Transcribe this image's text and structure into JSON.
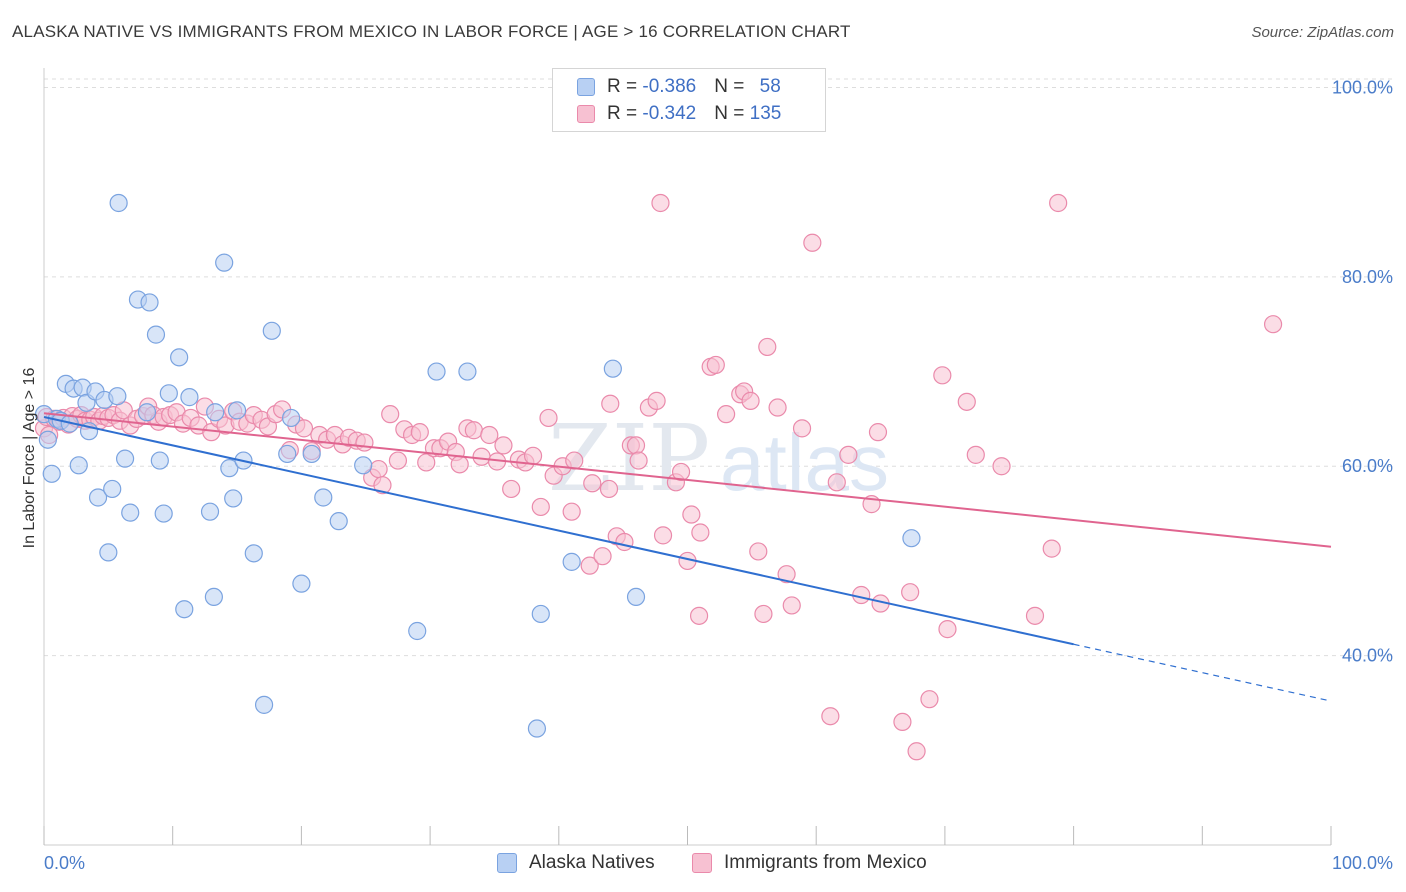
{
  "header": {
    "title": "ALASKA NATIVE VS IMMIGRANTS FROM MEXICO IN LABOR FORCE | AGE > 16 CORRELATION CHART",
    "source": "Source: ZipAtlas.com"
  },
  "watermark": {
    "zip": "ZIP",
    "atlas": "atlas"
  },
  "legend": {
    "r_label": "R = ",
    "n_label": "N = ",
    "rows": [
      {
        "r": "-0.386",
        "n": "58"
      },
      {
        "r": "-0.342",
        "n": "135"
      }
    ]
  },
  "bottom_legend": [
    "Alaska Natives",
    "Immigrants from Mexico"
  ],
  "colors": {
    "series1_fill": "#b8d0f3",
    "series1_stroke": "#7aa3e0",
    "series1_line": "#2f6fd0",
    "series2_fill": "#f7c1d2",
    "series2_stroke": "#ea8aab",
    "series2_line": "#e0648f",
    "tick": "#4a7cc9",
    "grid": "#dddddd"
  },
  "chart_data": {
    "type": "scatter",
    "title": "ALASKA NATIVE VS IMMIGRANTS FROM MEXICO IN LABOR FORCE | AGE > 16 CORRELATION CHART",
    "xlabel": "",
    "ylabel": "In Labor Force | Age > 16",
    "xlim": [
      0,
      100
    ],
    "ylim": [
      20,
      101
    ],
    "x_tick_labels": [
      "0.0%",
      "100.0%"
    ],
    "y_ticks": [
      40,
      60,
      80,
      100
    ],
    "y_tick_labels": [
      "40.0%",
      "60.0%",
      "80.0%",
      "100.0%"
    ],
    "grid": true,
    "legend_position": "top-center",
    "series": [
      {
        "name": "Alaska Natives",
        "r": -0.386,
        "n": 58,
        "trend": {
          "x0": 0,
          "y0": 65.2,
          "x1": 80,
          "y1": 41.2,
          "dashed_to_x": 100,
          "dashed_to_y": 35.2
        },
        "points": [
          [
            0.0,
            65.5
          ],
          [
            0.3,
            62.8
          ],
          [
            0.6,
            59.2
          ],
          [
            1.0,
            65.0
          ],
          [
            1.3,
            64.8
          ],
          [
            1.7,
            68.7
          ],
          [
            2.0,
            64.5
          ],
          [
            2.3,
            68.2
          ],
          [
            2.7,
            60.1
          ],
          [
            3.0,
            68.3
          ],
          [
            3.3,
            66.7
          ],
          [
            3.5,
            63.7
          ],
          [
            4.0,
            67.9
          ],
          [
            4.2,
            56.7
          ],
          [
            4.7,
            67.0
          ],
          [
            5.0,
            50.9
          ],
          [
            5.3,
            57.6
          ],
          [
            5.7,
            67.4
          ],
          [
            5.8,
            87.8
          ],
          [
            6.3,
            60.8
          ],
          [
            6.7,
            55.1
          ],
          [
            7.3,
            77.6
          ],
          [
            8.0,
            65.7
          ],
          [
            8.2,
            77.3
          ],
          [
            8.7,
            73.9
          ],
          [
            9.0,
            60.6
          ],
          [
            9.3,
            55.0
          ],
          [
            9.7,
            67.7
          ],
          [
            10.5,
            71.5
          ],
          [
            10.9,
            44.9
          ],
          [
            11.3,
            67.3
          ],
          [
            12.9,
            55.2
          ],
          [
            13.2,
            46.2
          ],
          [
            13.3,
            65.7
          ],
          [
            14.0,
            81.5
          ],
          [
            14.4,
            59.8
          ],
          [
            14.7,
            56.6
          ],
          [
            15.0,
            65.9
          ],
          [
            15.5,
            60.6
          ],
          [
            16.3,
            50.8
          ],
          [
            17.1,
            34.8
          ],
          [
            17.7,
            74.3
          ],
          [
            18.9,
            61.3
          ],
          [
            19.2,
            65.1
          ],
          [
            20.0,
            47.6
          ],
          [
            20.8,
            61.3
          ],
          [
            21.7,
            56.7
          ],
          [
            22.9,
            54.2
          ],
          [
            24.8,
            60.1
          ],
          [
            29.0,
            42.6
          ],
          [
            30.5,
            70.0
          ],
          [
            32.9,
            70.0
          ],
          [
            38.3,
            32.3
          ],
          [
            38.6,
            44.4
          ],
          [
            41.0,
            49.9
          ],
          [
            44.2,
            70.3
          ],
          [
            46.0,
            46.2
          ],
          [
            67.4,
            52.4
          ]
        ]
      },
      {
        "name": "Immigrants from Mexico",
        "r": -0.342,
        "n": 135,
        "trend": {
          "x0": 0,
          "y0": 65.6,
          "x1": 100,
          "y1": 51.5
        },
        "points": [
          [
            0.0,
            64.0
          ],
          [
            0.2,
            65.2
          ],
          [
            0.4,
            63.3
          ],
          [
            0.8,
            65.0
          ],
          [
            1.2,
            64.7
          ],
          [
            1.5,
            65.1
          ],
          [
            1.9,
            64.4
          ],
          [
            2.2,
            65.3
          ],
          [
            2.6,
            65.0
          ],
          [
            2.9,
            65.4
          ],
          [
            3.2,
            64.8
          ],
          [
            3.6,
            64.9
          ],
          [
            3.9,
            65.2
          ],
          [
            4.3,
            64.8
          ],
          [
            4.6,
            65.3
          ],
          [
            5.0,
            65.1
          ],
          [
            5.4,
            65.4
          ],
          [
            5.9,
            64.8
          ],
          [
            6.2,
            65.9
          ],
          [
            6.7,
            64.3
          ],
          [
            7.2,
            65.0
          ],
          [
            7.7,
            65.3
          ],
          [
            8.1,
            66.3
          ],
          [
            8.5,
            65.4
          ],
          [
            8.9,
            64.7
          ],
          [
            9.3,
            65.2
          ],
          [
            9.8,
            65.4
          ],
          [
            10.3,
            65.7
          ],
          [
            10.8,
            64.5
          ],
          [
            11.4,
            65.1
          ],
          [
            12.0,
            64.3
          ],
          [
            12.5,
            66.3
          ],
          [
            13.0,
            63.6
          ],
          [
            13.6,
            65.0
          ],
          [
            14.1,
            64.3
          ],
          [
            14.7,
            65.8
          ],
          [
            15.2,
            64.7
          ],
          [
            15.8,
            64.5
          ],
          [
            16.3,
            65.4
          ],
          [
            16.9,
            64.9
          ],
          [
            17.4,
            64.2
          ],
          [
            18.0,
            65.5
          ],
          [
            18.5,
            66.0
          ],
          [
            19.1,
            61.7
          ],
          [
            19.6,
            64.4
          ],
          [
            20.2,
            64.0
          ],
          [
            20.8,
            61.6
          ],
          [
            21.4,
            63.3
          ],
          [
            22.0,
            62.8
          ],
          [
            22.6,
            63.3
          ],
          [
            23.2,
            62.3
          ],
          [
            23.7,
            63.0
          ],
          [
            24.3,
            62.7
          ],
          [
            24.9,
            62.5
          ],
          [
            25.5,
            58.8
          ],
          [
            26.0,
            59.7
          ],
          [
            26.3,
            58.0
          ],
          [
            26.9,
            65.5
          ],
          [
            27.5,
            60.6
          ],
          [
            28.0,
            63.9
          ],
          [
            28.6,
            63.3
          ],
          [
            29.2,
            63.6
          ],
          [
            29.7,
            60.4
          ],
          [
            30.3,
            61.9
          ],
          [
            30.8,
            61.9
          ],
          [
            31.4,
            62.6
          ],
          [
            32.0,
            61.5
          ],
          [
            32.3,
            60.2
          ],
          [
            32.9,
            64.0
          ],
          [
            33.4,
            63.8
          ],
          [
            34.0,
            61.0
          ],
          [
            34.6,
            63.3
          ],
          [
            35.2,
            60.5
          ],
          [
            35.7,
            62.2
          ],
          [
            36.3,
            57.6
          ],
          [
            36.9,
            60.7
          ],
          [
            37.4,
            60.4
          ],
          [
            38.0,
            61.1
          ],
          [
            38.6,
            55.7
          ],
          [
            39.2,
            65.1
          ],
          [
            39.6,
            59.0
          ],
          [
            40.3,
            60.0
          ],
          [
            41.0,
            55.2
          ],
          [
            41.2,
            60.6
          ],
          [
            42.4,
            49.5
          ],
          [
            42.6,
            58.2
          ],
          [
            43.4,
            50.5
          ],
          [
            43.9,
            57.6
          ],
          [
            44.0,
            66.6
          ],
          [
            44.5,
            52.6
          ],
          [
            45.1,
            52.0
          ],
          [
            45.6,
            62.2
          ],
          [
            46.0,
            62.2
          ],
          [
            46.2,
            60.6
          ],
          [
            47.0,
            66.2
          ],
          [
            47.6,
            66.9
          ],
          [
            47.9,
            87.8
          ],
          [
            48.1,
            52.7
          ],
          [
            49.1,
            58.3
          ],
          [
            49.5,
            59.4
          ],
          [
            50.0,
            50.0
          ],
          [
            50.3,
            54.9
          ],
          [
            50.9,
            44.2
          ],
          [
            51.0,
            53.0
          ],
          [
            51.8,
            70.5
          ],
          [
            52.2,
            70.7
          ],
          [
            53.0,
            65.5
          ],
          [
            54.1,
            67.6
          ],
          [
            54.4,
            67.9
          ],
          [
            54.9,
            66.9
          ],
          [
            55.5,
            51.0
          ],
          [
            55.9,
            44.4
          ],
          [
            56.2,
            72.6
          ],
          [
            57.0,
            66.2
          ],
          [
            57.7,
            48.6
          ],
          [
            58.1,
            45.3
          ],
          [
            58.9,
            64.0
          ],
          [
            59.7,
            83.6
          ],
          [
            61.1,
            33.6
          ],
          [
            61.6,
            58.3
          ],
          [
            62.5,
            61.2
          ],
          [
            63.5,
            46.4
          ],
          [
            64.3,
            56.0
          ],
          [
            64.8,
            63.6
          ],
          [
            65.0,
            45.5
          ],
          [
            66.7,
            33.0
          ],
          [
            67.3,
            46.7
          ],
          [
            67.8,
            29.9
          ],
          [
            68.8,
            35.4
          ],
          [
            69.8,
            69.6
          ],
          [
            70.2,
            42.8
          ],
          [
            71.7,
            66.8
          ],
          [
            72.4,
            61.2
          ],
          [
            74.4,
            60.0
          ],
          [
            77.0,
            44.2
          ],
          [
            78.3,
            51.3
          ],
          [
            78.8,
            87.8
          ],
          [
            95.5,
            75.0
          ]
        ]
      }
    ]
  }
}
